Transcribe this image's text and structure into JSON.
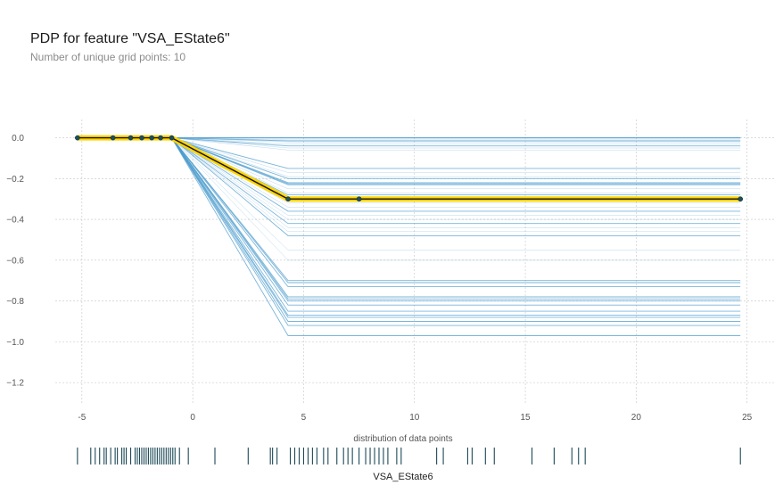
{
  "chart_data": {
    "type": "line",
    "title": "PDP for feature \"VSA_EState6\"",
    "subtitle": "Number of unique grid points: 10",
    "xlabel": "VSA_EState6",
    "distribution_label": "distribution of data points",
    "xlim": [
      -6.2,
      26.3
    ],
    "ylim": [
      -1.3,
      0.09
    ],
    "x_ticks": [
      -5,
      0,
      5,
      10,
      15,
      20,
      25
    ],
    "y_ticks": [
      0.0,
      -0.2,
      -0.4,
      -0.6,
      -0.8,
      -1.0,
      -1.2
    ],
    "y_tick_labels": [
      "0.0",
      "−0.2",
      "−0.4",
      "−0.6",
      "−0.8",
      "−1.0",
      "−1.2"
    ],
    "grid": true,
    "pdp_line": {
      "x": [
        -5.2,
        -3.6,
        -2.8,
        -2.3,
        -1.85,
        -1.45,
        -0.95,
        4.3,
        7.5,
        24.7
      ],
      "y": [
        0.0,
        0.0,
        0.0,
        0.0,
        0.0,
        0.0,
        0.0,
        -0.3,
        -0.3,
        -0.3
      ]
    },
    "ice_knots_x": [
      -5.2,
      -0.95,
      4.3,
      24.7
    ],
    "ice_final_values": [
      0,
      0,
      0,
      0,
      -0.005,
      -0.01,
      -0.015,
      -0.02,
      -0.03,
      -0.04,
      -0.05,
      -0.06,
      -0.15,
      -0.17,
      -0.19,
      -0.2,
      -0.22,
      -0.225,
      -0.23,
      -0.25,
      -0.27,
      -0.28,
      -0.29,
      -0.3,
      -0.31,
      -0.32,
      -0.34,
      -0.36,
      -0.38,
      -0.4,
      -0.42,
      -0.44,
      -0.46,
      -0.48,
      -0.55,
      -0.6,
      -0.7,
      -0.71,
      -0.73,
      -0.78,
      -0.79,
      -0.8,
      -0.82,
      -0.85,
      -0.87,
      -0.88,
      -0.9,
      -0.92,
      -0.97
    ],
    "rug_points": [
      -5.2,
      -4.6,
      -4.4,
      -4.2,
      -4.0,
      -3.9,
      -3.7,
      -3.5,
      -3.4,
      -3.2,
      -3.1,
      -3.0,
      -2.8,
      -2.6,
      -2.5,
      -2.4,
      -2.3,
      -2.2,
      -2.1,
      -2.0,
      -1.9,
      -1.8,
      -1.7,
      -1.6,
      -1.5,
      -1.4,
      -1.3,
      -1.2,
      -1.1,
      -1.0,
      -0.9,
      -0.8,
      -0.6,
      -0.2,
      1.0,
      2.5,
      3.5,
      3.6,
      3.8,
      4.4,
      4.6,
      4.8,
      5.0,
      5.2,
      5.4,
      5.6,
      5.9,
      6.1,
      6.5,
      6.8,
      7.0,
      7.2,
      7.5,
      7.8,
      8.0,
      8.2,
      8.4,
      8.6,
      8.8,
      9.2,
      9.4,
      11.0,
      11.3,
      12.4,
      12.6,
      13.2,
      13.6,
      15.3,
      16.3,
      17.1,
      17.4,
      17.7,
      24.7
    ],
    "colors": {
      "ice": "#4e9ccd",
      "pdp_fill": "#ffd400",
      "pdp_line": "#111111",
      "markers": "#1d4e5c",
      "rug": "#1c4a57",
      "grid": "#c4c4c4"
    }
  }
}
